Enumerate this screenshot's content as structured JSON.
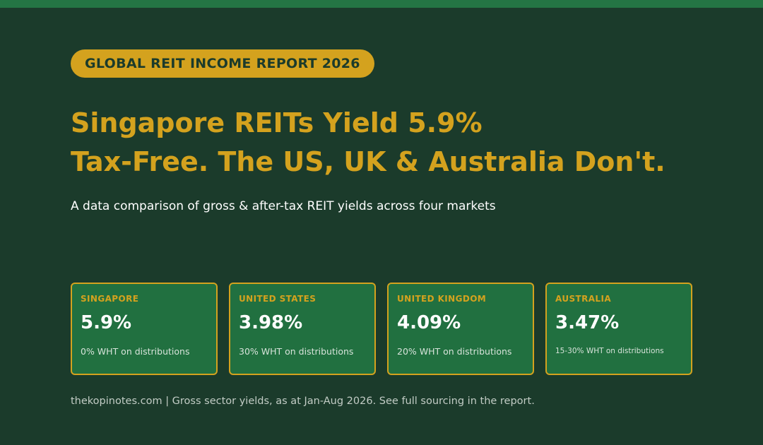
{
  "badge": {
    "label": "GLOBAL REIT INCOME REPORT 2026"
  },
  "headline": {
    "line1": "Singapore REITs Yield 5.9%",
    "line2": "Tax-Free. The US, UK & Australia Don't."
  },
  "subtitle": "A data comparison of gross & after-tax REIT yields across four markets",
  "cards": [
    {
      "label": "SINGAPORE",
      "value": "5.9%",
      "note": "0% WHT on distributions"
    },
    {
      "label": "UNITED STATES",
      "value": "3.98%",
      "note": "30% WHT on distributions"
    },
    {
      "label": "UNITED KINGDOM",
      "value": "4.09%",
      "note": "20% WHT on distributions"
    },
    {
      "label": "AUSTRALIA",
      "value": "3.47%",
      "note": "15-30% WHT on distributions"
    }
  ],
  "footer": "thekopinotes.com | Gross sector yields, as at Jan-Aug 2026. See full sourcing in the report.",
  "colors": {
    "background": "#1b3b2b",
    "top_bar": "#247544",
    "accent_gold": "#d4a21e",
    "card_fill": "#217040",
    "text_white": "#ffffff"
  }
}
